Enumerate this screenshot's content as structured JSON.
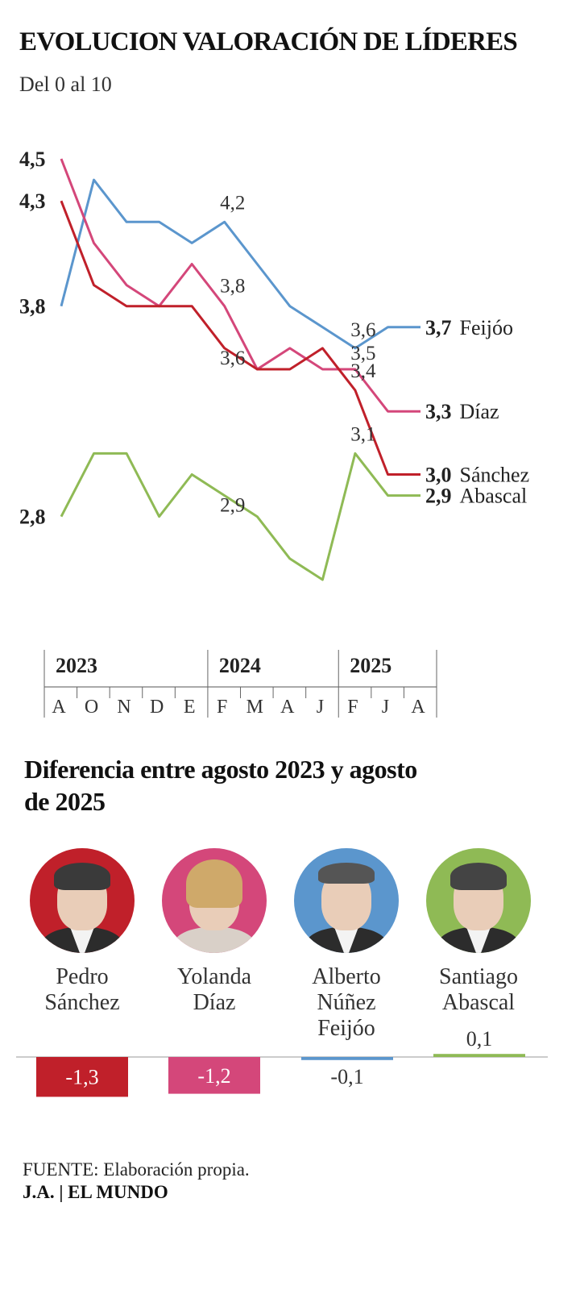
{
  "title": "EVOLUCION VALORACIÓN DE LÍDERES",
  "subtitle": "Del 0 al 10",
  "chart_data": {
    "type": "line",
    "x": [
      "A",
      "O",
      "N",
      "D",
      "E",
      "F",
      "M",
      "A",
      "J",
      "F",
      "J",
      "A"
    ],
    "years": [
      {
        "label": "2023",
        "start": 0,
        "end": 4
      },
      {
        "label": "2024",
        "start": 5,
        "end": 8
      },
      {
        "label": "2025",
        "start": 9,
        "end": 11
      }
    ],
    "ylim": [
      2.4,
      4.6
    ],
    "series": [
      {
        "name": "Feijóo",
        "final_label": "3,7",
        "color": "#5b96cd",
        "values": [
          3.8,
          4.4,
          4.2,
          4.2,
          4.1,
          4.2,
          4.0,
          3.8,
          3.7,
          3.6,
          3.7,
          3.7
        ]
      },
      {
        "name": "Díaz",
        "final_label": "3,3",
        "color": "#d4477a",
        "values": [
          4.5,
          4.1,
          3.9,
          3.8,
          4.0,
          3.8,
          3.5,
          3.6,
          3.5,
          3.5,
          3.3,
          3.3
        ]
      },
      {
        "name": "Sánchez",
        "final_label": "3,0",
        "color": "#c0202a",
        "values": [
          4.3,
          3.9,
          3.8,
          3.8,
          3.8,
          3.6,
          3.5,
          3.5,
          3.6,
          3.4,
          3.0,
          3.0
        ]
      },
      {
        "name": "Abascal",
        "final_label": "2,9",
        "color": "#8fba55",
        "values": [
          2.8,
          3.1,
          3.1,
          2.8,
          3.0,
          2.9,
          2.8,
          2.6,
          2.5,
          3.1,
          2.9,
          2.9
        ]
      }
    ],
    "start_labels": [
      {
        "text": "4,5",
        "y": 4.5
      },
      {
        "text": "4,3",
        "y": 4.3
      },
      {
        "text": "3,8",
        "y": 3.8
      },
      {
        "text": "2,8",
        "y": 2.8
      }
    ],
    "annotations": [
      {
        "text": "4,2",
        "x": 5,
        "y": 4.2
      },
      {
        "text": "3,8",
        "x": 5,
        "y": 3.8
      },
      {
        "text": "3,6",
        "x": 5,
        "y": 3.6
      },
      {
        "text": "2,9",
        "x": 5,
        "y": 2.9
      },
      {
        "text": "3,6",
        "x": 9,
        "y": 3.6
      },
      {
        "text": "3,5",
        "x": 9,
        "y": 3.5
      },
      {
        "text": "3,4",
        "x": 9,
        "y": 3.4
      },
      {
        "text": "3,1",
        "x": 9,
        "y": 3.1
      }
    ]
  },
  "difference": {
    "heading": "Diferencia entre agosto 2023 y agosto de 2025",
    "chart_data": {
      "type": "bar",
      "categories": [
        "Pedro Sánchez",
        "Yolanda Díaz",
        "Alberto Núñez Feijóo",
        "Santiago Abascal"
      ],
      "values": [
        -1.3,
        -1.2,
        -0.1,
        0.1
      ],
      "value_labels": [
        "-1,3",
        "-1,2",
        "-0,1",
        "0,1"
      ],
      "colors": [
        "#c0202a",
        "#d4477a",
        "#5b96cd",
        "#8fba55"
      ]
    },
    "leaders": [
      {
        "name_line1": "Pedro",
        "name_line2": "Sánchez",
        "photo_icon": "portrait-sanchez",
        "color": "#c0202a"
      },
      {
        "name_line1": "Yolanda",
        "name_line2": "Díaz",
        "photo_icon": "portrait-diaz",
        "color": "#d4477a"
      },
      {
        "name_line1": "Alberto Núñez",
        "name_line2": "Feijóo",
        "photo_icon": "portrait-feijoo",
        "color": "#5b96cd"
      },
      {
        "name_line1": "Santiago",
        "name_line2": "Abascal",
        "photo_icon": "portrait-abascal",
        "color": "#8fba55"
      }
    ]
  },
  "footer": {
    "source": "FUENTE: Elaboración propia.",
    "credit": "J.A. | EL MUNDO"
  }
}
